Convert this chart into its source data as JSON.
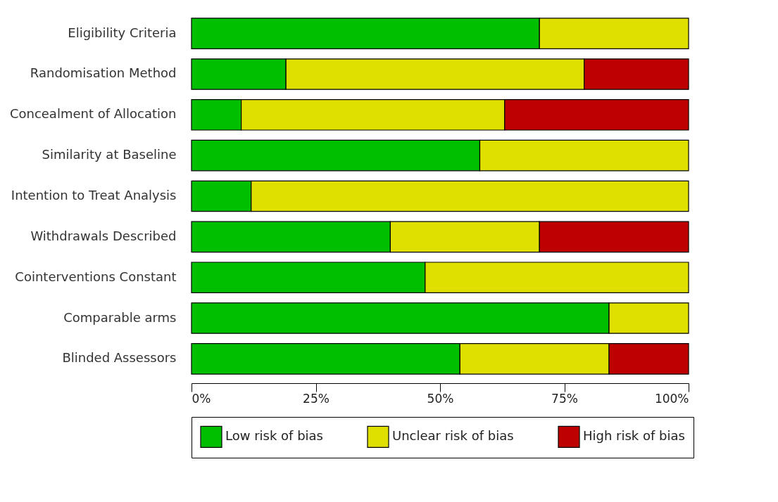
{
  "chart_data": {
    "type": "bar",
    "orientation": "horizontal",
    "stacked": true,
    "categories": [
      "Eligibility Criteria",
      "Randomisation Method",
      "Concealment of Allocation",
      "Similarity at Baseline",
      "Intention to Treat Analysis",
      "Withdrawals Described",
      "Cointerventions Constant",
      "Comparable arms",
      "Blinded Assessors"
    ],
    "series": [
      {
        "name": "Low risk of bias",
        "color": "#00bf00",
        "values": [
          70,
          19,
          10,
          58,
          12,
          40,
          47,
          84,
          54
        ]
      },
      {
        "name": "Unclear risk of bias",
        "color": "#dfdf00",
        "values": [
          30,
          60,
          53,
          42,
          88,
          30,
          53,
          16,
          30
        ]
      },
      {
        "name": "High risk of bias",
        "color": "#bf0000",
        "values": [
          null,
          21,
          37,
          null,
          null,
          30,
          null,
          null,
          16
        ]
      }
    ],
    "xlim": [
      0,
      100
    ],
    "xticks": [
      {
        "value": 0,
        "label": "0%"
      },
      {
        "value": 25,
        "label": "25%"
      },
      {
        "value": 50,
        "label": "50%"
      },
      {
        "value": 75,
        "label": "75%"
      },
      {
        "value": 100,
        "label": "100%"
      }
    ],
    "legend": "bottom"
  }
}
